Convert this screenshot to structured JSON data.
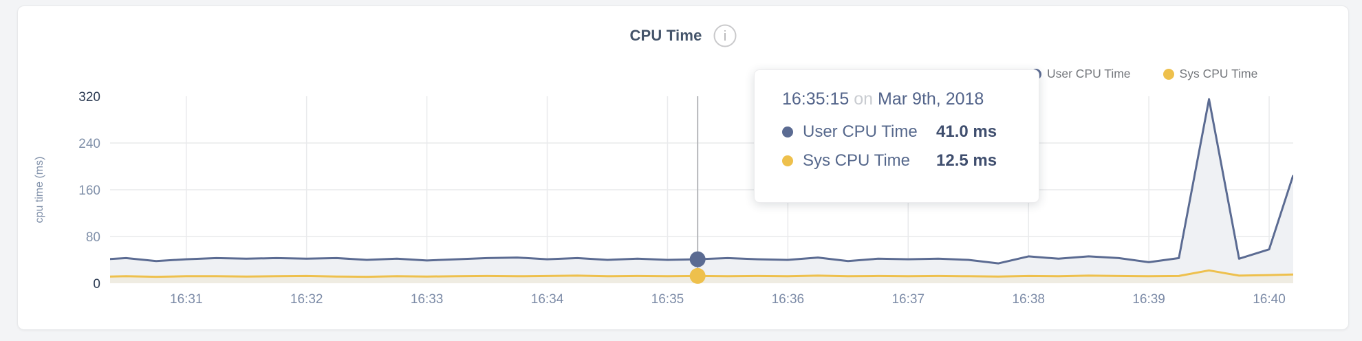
{
  "card": {
    "title": "CPU Time"
  },
  "legend": [
    {
      "label": "User CPU Time",
      "color": "#5b6b92"
    },
    {
      "label": "Sys CPU Time",
      "color": "#eec04c"
    }
  ],
  "tooltip": {
    "time": "16:35:15",
    "connector": "on",
    "date": "Mar 9th, 2018",
    "rows": [
      {
        "label": "User CPU Time",
        "value": "41.0 ms",
        "color": "#5b6b92"
      },
      {
        "label": "Sys CPU Time",
        "value": "12.5 ms",
        "color": "#eec04c"
      }
    ]
  },
  "chart_data": {
    "type": "area",
    "title": "CPU Time",
    "ylabel": "cpu time (ms)",
    "ylim": [
      0,
      320
    ],
    "yticks": [
      0,
      80,
      160,
      240,
      320
    ],
    "grid": true,
    "legend_position": "top-right",
    "x_unit": "seconds after 16:30:00",
    "x_seconds": [
      15,
      30,
      45,
      60,
      75,
      90,
      105,
      120,
      135,
      150,
      165,
      180,
      195,
      210,
      225,
      240,
      255,
      270,
      285,
      300,
      315,
      330,
      345,
      360,
      375,
      390,
      405,
      420,
      435,
      450,
      465,
      480,
      495,
      510,
      525,
      540,
      555,
      570,
      585,
      600,
      612
    ],
    "xticks": [
      {
        "label": "16:31",
        "t": 60
      },
      {
        "label": "16:32",
        "t": 120
      },
      {
        "label": "16:33",
        "t": 180
      },
      {
        "label": "16:34",
        "t": 240
      },
      {
        "label": "16:35",
        "t": 300
      },
      {
        "label": "16:36",
        "t": 360
      },
      {
        "label": "16:37",
        "t": 420
      },
      {
        "label": "16:38",
        "t": 480
      },
      {
        "label": "16:39",
        "t": 540
      },
      {
        "label": "16:40",
        "t": 600
      }
    ],
    "series": [
      {
        "name": "User CPU Time",
        "color": "#5b6b92",
        "fill": "#eff1f4",
        "values": [
          40,
          43,
          38,
          41,
          43,
          42,
          43,
          42,
          43,
          40,
          42,
          39,
          41,
          43,
          44,
          41,
          43,
          40,
          42,
          40,
          41,
          43,
          41,
          40,
          44,
          38,
          42,
          41,
          42,
          40,
          34,
          46,
          42,
          46,
          43,
          36,
          43,
          315,
          42,
          58,
          185
        ]
      },
      {
        "name": "Sys CPU Time",
        "color": "#eec04c",
        "fill": "#efece2",
        "values": [
          11,
          12,
          11,
          12,
          12,
          11.5,
          12,
          12.5,
          11.5,
          11,
          12,
          11.5,
          12,
          12.5,
          12,
          12.5,
          13,
          12,
          12.5,
          12,
          12.5,
          12,
          12.5,
          12,
          13,
          12,
          12.5,
          12,
          12.5,
          12,
          11.5,
          12.5,
          12,
          13,
          12.5,
          12,
          12.5,
          22,
          13,
          14,
          15
        ]
      }
    ],
    "selected_point": {
      "time": "16:35:15",
      "x_seconds": 315,
      "user_ms": 41.0,
      "sys_ms": 12.5
    }
  }
}
